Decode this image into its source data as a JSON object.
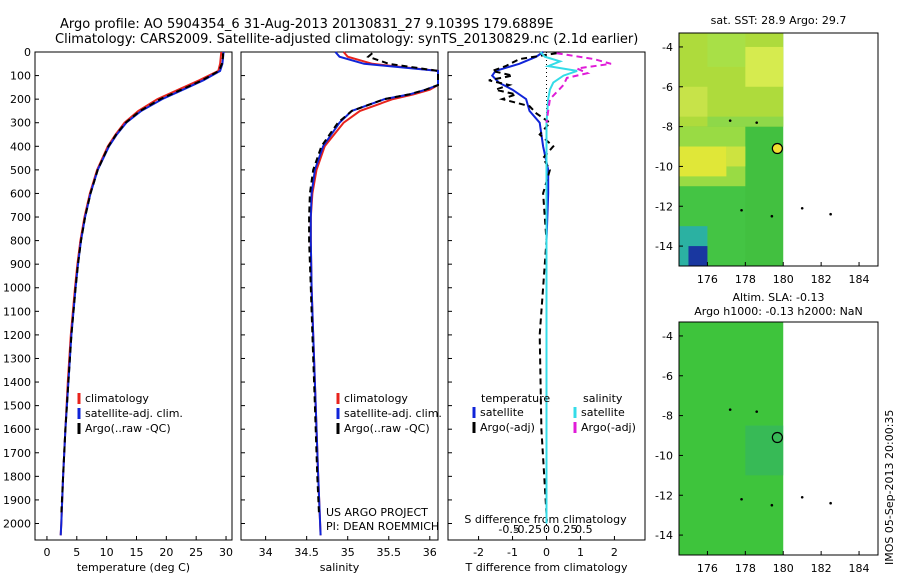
{
  "header": {
    "title_line1": "Argo profile: AO 5904354_6 31-Aug-2013 20130831_27 9.1039S 179.6889E",
    "title_line2": "Climatology: CARS2009. Satellite-adjusted climatology: synTS_20130829.nc (2.1d earlier)"
  },
  "side_stamp": "IMOS 05-Sep-2013 20:00:35",
  "colors": {
    "climatology": "#e8231c",
    "satellite": "#1024d8",
    "argo": "#000000",
    "sat_salinity": "#34dce8",
    "argo_salinity": "#e01cd8",
    "map_green": "#3cc43c"
  },
  "chart_data": [
    {
      "type": "line",
      "name": "temperature_profile",
      "xlabel": "temperature (deg C)",
      "ylabel": "",
      "xlim": [
        -2,
        31
      ],
      "ylim": [
        2070,
        0
      ],
      "xticks": [
        0,
        5,
        10,
        15,
        20,
        25,
        30
      ],
      "yticks": [
        0,
        100,
        200,
        300,
        400,
        500,
        600,
        700,
        800,
        900,
        1000,
        1100,
        1200,
        1300,
        1400,
        1500,
        1600,
        1700,
        1800,
        1900,
        2000
      ],
      "legend": [
        "climatology",
        "satellite-adj. clim.",
        "Argo(..raw -QC)"
      ],
      "series": [
        {
          "name": "climatology",
          "depth": [
            0,
            50,
            80,
            120,
            160,
            200,
            250,
            300,
            350,
            400,
            500,
            600,
            700,
            800,
            900,
            1000,
            1200,
            1400,
            1600,
            1800,
            2000,
            2050
          ],
          "values": [
            29.2,
            29.0,
            28.7,
            25.5,
            22.0,
            18.5,
            15.3,
            13.0,
            11.5,
            10.2,
            8.4,
            7.2,
            6.3,
            5.6,
            5.1,
            4.7,
            4.0,
            3.5,
            3.1,
            2.7,
            2.4,
            2.3
          ]
        },
        {
          "name": "satellite-adj. clim.",
          "depth": [
            0,
            50,
            80,
            120,
            160,
            200,
            250,
            300,
            350,
            400,
            500,
            600,
            700,
            800,
            900,
            1000,
            1200,
            1400,
            1600,
            1800,
            2000,
            2050
          ],
          "values": [
            29.6,
            29.4,
            29.0,
            26.2,
            22.8,
            19.3,
            15.8,
            13.3,
            11.7,
            10.4,
            8.5,
            7.3,
            6.4,
            5.7,
            5.2,
            4.8,
            4.1,
            3.6,
            3.1,
            2.7,
            2.4,
            2.3
          ]
        },
        {
          "name": "Argo(..raw -QC)",
          "depth": [
            5,
            20,
            50,
            80,
            120,
            160,
            200,
            250,
            300,
            350,
            400,
            500,
            600,
            700,
            800,
            900,
            1000,
            1200,
            1400,
            1600,
            1800,
            1960
          ],
          "values": [
            29.5,
            29.5,
            29.3,
            28.8,
            26.0,
            22.5,
            19.0,
            15.6,
            13.2,
            11.6,
            10.3,
            8.5,
            7.3,
            6.4,
            5.7,
            5.2,
            4.8,
            4.1,
            3.6,
            3.1,
            2.7,
            2.4
          ]
        }
      ]
    },
    {
      "type": "line",
      "name": "salinity_profile",
      "xlabel": "salinity",
      "xlim": [
        33.7,
        36.1
      ],
      "ylim": [
        2070,
        0
      ],
      "xticks": [
        34,
        34.5,
        35,
        35.5,
        36
      ],
      "legend": [
        "climatology",
        "satellite-adj. clim.",
        "Argo(..raw -QC)"
      ],
      "annotation": [
        "US ARGO PROJECT",
        "PI: DEAN ROEMMICH"
      ],
      "series": [
        {
          "name": "climatology",
          "depth": [
            0,
            20,
            50,
            80,
            100,
            120,
            140,
            160,
            180,
            200,
            250,
            300,
            400,
            500,
            600,
            700,
            800,
            1000,
            1200,
            1500,
            1800,
            2050
          ],
          "values": [
            34.95,
            35.0,
            35.3,
            36.1,
            36.2,
            36.2,
            36.1,
            36.0,
            35.8,
            35.55,
            35.15,
            34.95,
            34.72,
            34.62,
            34.57,
            34.55,
            34.55,
            34.56,
            34.58,
            34.61,
            34.64,
            34.67
          ]
        },
        {
          "name": "satellite-adj. clim.",
          "depth": [
            0,
            20,
            50,
            80,
            100,
            120,
            140,
            160,
            180,
            200,
            250,
            300,
            400,
            500,
            600,
            700,
            800,
            1000,
            1200,
            1500,
            1800,
            2050
          ],
          "values": [
            34.85,
            34.9,
            35.2,
            36.1,
            36.2,
            36.2,
            36.1,
            35.95,
            35.75,
            35.45,
            35.05,
            34.9,
            34.7,
            34.6,
            34.56,
            34.55,
            34.55,
            34.56,
            34.58,
            34.61,
            34.64,
            34.67
          ]
        },
        {
          "name": "Argo(..raw -QC)",
          "depth": [
            5,
            20,
            50,
            80,
            100,
            120,
            140,
            160,
            180,
            200,
            250,
            300,
            400,
            500,
            600,
            700,
            800,
            1000,
            1200,
            1500,
            1800,
            1960
          ],
          "values": [
            35.3,
            35.25,
            35.5,
            36.1,
            36.2,
            36.2,
            36.1,
            35.95,
            35.75,
            35.45,
            35.05,
            34.88,
            34.68,
            34.58,
            34.54,
            34.53,
            34.53,
            34.55,
            34.57,
            34.6,
            34.63,
            34.65
          ]
        }
      ]
    },
    {
      "type": "line",
      "name": "difference_profile",
      "xlabel": "T difference from climatology",
      "xlabel_top": "S difference from climatology",
      "xlim": [
        -2.9,
        2.9
      ],
      "ylim": [
        2070,
        0
      ],
      "xticks": [
        -2,
        -1,
        0,
        1,
        2
      ],
      "xticks_s": [
        "-0.5",
        "-0.25",
        "0",
        "0.25",
        "0.5"
      ],
      "legend_temperature": [
        "temperature",
        "satellite",
        "Argo(-adj)"
      ],
      "legend_salinity": [
        "salinity",
        "satellite",
        "Argo(-adj)"
      ],
      "series": [
        {
          "name": "T satellite",
          "depth": [
            0,
            20,
            50,
            80,
            100,
            130,
            160,
            200,
            250,
            300,
            400,
            500,
            600,
            800,
            1000,
            1500,
            2000
          ],
          "values": [
            -0.1,
            -0.3,
            -0.8,
            -1.5,
            -1.6,
            -1.4,
            -1.0,
            -0.6,
            -0.5,
            -0.2,
            -0.1,
            0.05,
            0.05,
            0.0,
            0.0,
            0.0,
            0.0
          ]
        },
        {
          "name": "T Argo(-adj)",
          "depth": [
            5,
            30,
            60,
            80,
            100,
            120,
            140,
            160,
            180,
            200,
            230,
            260,
            300,
            350,
            400,
            450,
            500,
            600,
            800,
            1200,
            1600,
            1960
          ],
          "values": [
            0.3,
            -0.8,
            -1.2,
            -1.6,
            -1.0,
            -1.7,
            -1.1,
            -1.5,
            -0.9,
            -1.3,
            -0.5,
            -0.3,
            0.1,
            -0.2,
            0.2,
            -0.1,
            0.1,
            -0.1,
            0.0,
            -0.2,
            -0.15,
            0.0
          ]
        },
        {
          "name": "S satellite",
          "depth": [
            0,
            20,
            40,
            60,
            80,
            100,
            130,
            160,
            200,
            300,
            400,
            600,
            800,
            1000,
            1500,
            2000
          ],
          "values": [
            -0.18,
            -0.05,
            0.4,
            0.05,
            0.9,
            0.5,
            0.2,
            0.1,
            0.05,
            0.0,
            0.0,
            0.0,
            0.0,
            0.0,
            0.0,
            0.0
          ]
        },
        {
          "name": "S Argo(-adj)",
          "depth": [
            5,
            30,
            50,
            70,
            90,
            110,
            140,
            170,
            200,
            250,
            300
          ],
          "values": [
            0.3,
            1.4,
            1.9,
            0.9,
            1.2,
            0.6,
            0.5,
            0.3,
            0.1,
            0.05,
            0.0
          ]
        }
      ]
    },
    {
      "type": "heatmap",
      "name": "sst_map",
      "title": "sat. SST: 28.9 Argo: 29.7",
      "xlim": [
        174.5,
        185
      ],
      "ylim": [
        -15,
        -3.3
      ],
      "xticks": [
        176,
        178,
        180,
        182,
        184
      ],
      "yticks": [
        -4,
        -6,
        -8,
        -10,
        -12,
        -14
      ],
      "argo_position": {
        "lon": 179.69,
        "lat": -9.1
      }
    },
    {
      "type": "heatmap",
      "name": "sla_map",
      "title_line1": "Altim. SLA: -0.13",
      "title_line2": "Argo h1000: -0.13 h2000: NaN",
      "xlim": [
        174.5,
        185
      ],
      "ylim": [
        -15,
        -3.3
      ],
      "xticks": [
        176,
        178,
        180,
        182,
        184
      ],
      "yticks": [
        -4,
        -6,
        -8,
        -10,
        -12,
        -14
      ],
      "argo_position": {
        "lon": 179.69,
        "lat": -9.1
      }
    }
  ]
}
